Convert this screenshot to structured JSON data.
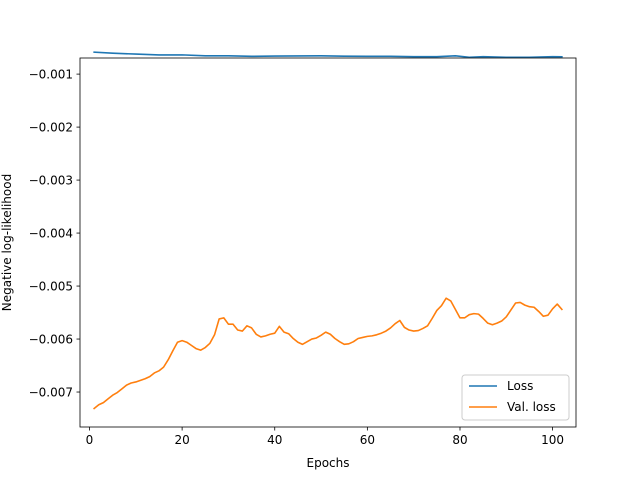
{
  "chart_data": {
    "type": "line",
    "title": "",
    "xlabel": "Epochs",
    "ylabel": "Negative log-likelihood",
    "xlim": [
      -2.05,
      105.05
    ],
    "ylim": [
      -0.00766,
      -0.000696
    ],
    "xticks": [
      0,
      20,
      40,
      60,
      80,
      100
    ],
    "xtick_labels": [
      "0",
      "20",
      "40",
      "60",
      "80",
      "100"
    ],
    "yticks": [
      -0.007,
      -0.006,
      -0.005,
      -0.004,
      -0.003,
      -0.002,
      -0.001
    ],
    "ytick_labels": [
      "−0.007",
      "−0.006",
      "−0.005",
      "−0.004",
      "−0.003",
      "−0.002",
      "−0.001"
    ],
    "grid": false,
    "legend_position": "lower-right",
    "series": [
      {
        "name": "Loss",
        "color": "#1f77b4",
        "x": [
          1,
          5,
          10,
          15,
          20,
          25,
          30,
          35,
          40,
          45,
          50,
          55,
          60,
          65,
          70,
          75,
          79,
          82,
          85,
          90,
          95,
          100,
          102
        ],
        "y": [
          -0.000586,
          -0.000606,
          -0.000622,
          -0.000638,
          -0.000637,
          -0.000655,
          -0.000655,
          -0.000665,
          -0.00066,
          -0.000657,
          -0.000655,
          -0.000661,
          -0.000665,
          -0.000665,
          -0.000671,
          -0.000671,
          -0.000654,
          -0.000682,
          -0.000671,
          -0.000682,
          -0.000682,
          -0.000671,
          -0.000674
        ]
      },
      {
        "name": "Val. loss",
        "color": "#ff7f0e",
        "x": [
          1,
          2,
          3,
          4,
          5,
          6,
          7,
          8,
          9,
          10,
          11,
          12,
          13,
          14,
          15,
          16,
          17,
          18,
          19,
          20,
          21,
          22,
          23,
          24,
          25,
          26,
          27,
          28,
          29,
          30,
          31,
          32,
          33,
          34,
          35,
          36,
          37,
          38,
          39,
          40,
          41,
          42,
          43,
          44,
          45,
          46,
          47,
          48,
          49,
          50,
          51,
          52,
          53,
          54,
          55,
          56,
          57,
          58,
          59,
          60,
          61,
          62,
          63,
          64,
          65,
          66,
          67,
          68,
          69,
          70,
          71,
          72,
          73,
          74,
          75,
          76,
          77,
          78,
          79,
          80,
          81,
          82,
          83,
          84,
          85,
          86,
          87,
          88,
          89,
          90,
          91,
          92,
          93,
          94,
          95,
          96,
          97,
          98,
          99,
          100,
          101,
          102
        ],
        "y": [
          -0.00731,
          -0.00724,
          -0.0072,
          -0.00713,
          -0.00706,
          -0.00701,
          -0.00694,
          -0.00687,
          -0.00683,
          -0.00681,
          -0.00678,
          -0.00675,
          -0.00671,
          -0.00664,
          -0.0066,
          -0.00653,
          -0.00639,
          -0.00622,
          -0.00606,
          -0.00603,
          -0.00606,
          -0.00612,
          -0.00618,
          -0.00621,
          -0.00616,
          -0.00608,
          -0.00592,
          -0.00562,
          -0.0056,
          -0.00572,
          -0.00572,
          -0.00583,
          -0.00585,
          -0.00575,
          -0.00579,
          -0.00591,
          -0.00596,
          -0.00594,
          -0.00591,
          -0.00589,
          -0.00576,
          -0.00587,
          -0.0059,
          -0.00599,
          -0.00606,
          -0.0061,
          -0.00605,
          -0.006,
          -0.00598,
          -0.00593,
          -0.00587,
          -0.00591,
          -0.00599,
          -0.00605,
          -0.0061,
          -0.00609,
          -0.00605,
          -0.00599,
          -0.00597,
          -0.00595,
          -0.00594,
          -0.00592,
          -0.00589,
          -0.00585,
          -0.00579,
          -0.00571,
          -0.00565,
          -0.00578,
          -0.00583,
          -0.00585,
          -0.00584,
          -0.0058,
          -0.00575,
          -0.00561,
          -0.00546,
          -0.00537,
          -0.00523,
          -0.00528,
          -0.00544,
          -0.0056,
          -0.0056,
          -0.00554,
          -0.00552,
          -0.00553,
          -0.00561,
          -0.0057,
          -0.00573,
          -0.0057,
          -0.00566,
          -0.00558,
          -0.00545,
          -0.00532,
          -0.00531,
          -0.00536,
          -0.00539,
          -0.0054,
          -0.00548,
          -0.00557,
          -0.00555,
          -0.00543,
          -0.00534,
          -0.00544
        ]
      }
    ]
  }
}
